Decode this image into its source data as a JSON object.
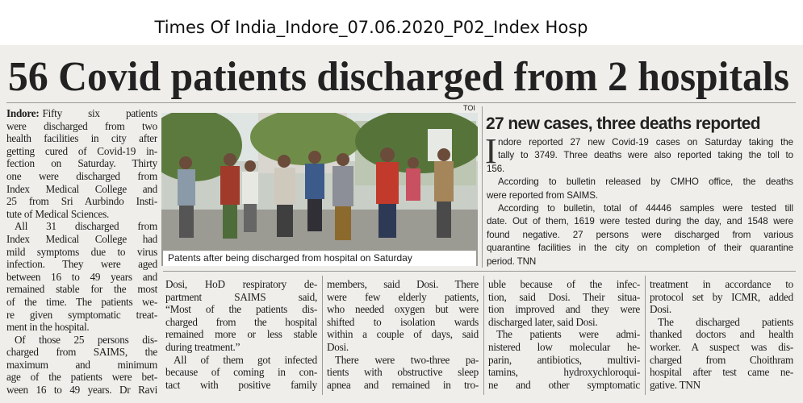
{
  "header": {
    "caption": "Times Of India_Indore_07.06.2020_P02_Index Hosp"
  },
  "article": {
    "headline": "56 Covid patients discharged from 2 hospitals",
    "credit": "TOI",
    "left_column": {
      "dateline": "Indore:",
      "paragraphs": [
        [
          "Fifty six patients",
          "were discharged from two",
          "health facilities in city after",
          "getting cured of Covid-19 in-",
          "fection on Saturday. Thirty",
          "one were discharged from",
          "Index Medical College and",
          "25 from Sri Aurbindo Insti-",
          "tute of Medical Sciences."
        ],
        [
          "All 31 discharged from",
          "Index Medical College had",
          "mild symptoms due to virus",
          "infection. They were aged",
          "between 16 to 49 years and",
          "remained stable for the most",
          "of the time. The patients we-",
          "re given symptomatic treat-",
          "ment in the hospital."
        ],
        [
          "Of those 25 persons dis-",
          "charged from SAIMS, the",
          "maximum and minimum",
          "age of the patients were bet-",
          "ween 16 to 49 years. Dr Ravi"
        ]
      ]
    },
    "photo": {
      "caption": "Patents after being discharged from hospital on Saturday"
    },
    "columns": [
      {
        "paragraphs": [
          [
            "Dosi, HoD respiratory de-",
            "partment SAIMS said,",
            "“Most of the patients dis-",
            "charged from the hospital",
            "remained more or less stable",
            "during treatment.”"
          ],
          [
            "All of them got infected",
            "because of coming in con-",
            "tact with positive family"
          ]
        ]
      },
      {
        "paragraphs": [
          [
            "members, said Dosi. There",
            "were few elderly patients,",
            "who needed oxygen but were",
            "shifted to isolation wards",
            "within a couple of days, said",
            "Dosi."
          ],
          [
            "There were two-three pa-",
            "tients with obstructive sleep",
            "apnea and remained in tro-"
          ]
        ]
      },
      {
        "paragraphs": [
          [
            "uble because of the infec-",
            "tion, said Dosi. Their situa-",
            "tion improved and they were",
            "discharged later, said Dosi."
          ],
          [
            "The patients were admi-",
            "nistered low molecular he-",
            "parin, antibiotics, multivi-",
            "tamins, hydroxychloroqui-",
            "ne and other symptomatic"
          ]
        ]
      },
      {
        "paragraphs": [
          [
            "treatment in accordance to",
            "protocol set by ICMR, added",
            "Dosi."
          ],
          [
            "The discharged patients",
            "thanked doctors and health",
            "worker. A suspect was dis-",
            "charged from Choithram",
            "hospital after test came ne-",
            "gative. TNN"
          ]
        ]
      }
    ],
    "sidebar": {
      "heading": "27 new cases, three deaths reported",
      "drop_cap": "I",
      "paragraphs": [
        [
          "ndore reported 27 new Covid-19 cases on Saturday taking the",
          "tally to 3749. Three deaths were also reported taking the toll to",
          "156."
        ],
        [
          "According to bulletin released by CMHO office, the deaths",
          "were reported from SAIMS."
        ],
        [
          "According to bulletin, total of 44446 samples were tested till",
          "date. Out of them, 1619 were tested during the day, and 1548 were",
          "found negative. 27 persons were discharged from various",
          "quarantine facilities in the city on completion of their quarantine",
          "period. TNN"
        ]
      ]
    }
  }
}
